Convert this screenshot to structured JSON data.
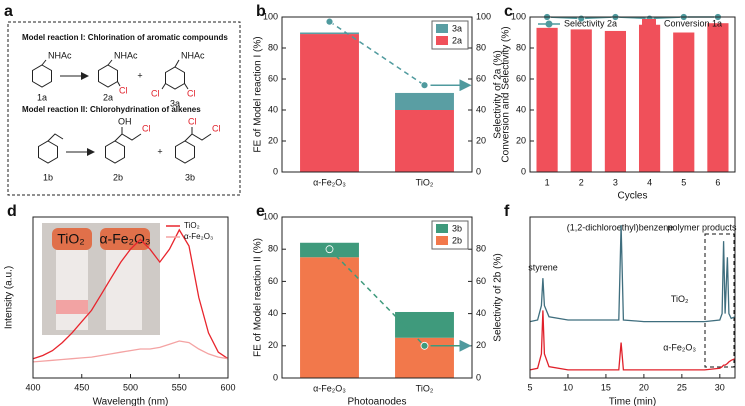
{
  "panel_a": {
    "label": "a",
    "reaction_1": "Model reaction I:  Chlorination of aromatic compounds",
    "reaction_2": "Model reaction II: Chlorohydrination of alkenes",
    "plus": "+",
    "compounds": [
      {
        "id": "1a",
        "groups": [
          "NHAc"
        ]
      },
      {
        "id": "2a",
        "groups": [
          "NHAc",
          "Cl"
        ]
      },
      {
        "id": "3a",
        "groups": [
          "NHAc",
          "Cl",
          "Cl"
        ]
      },
      {
        "id": "1b",
        "groups": []
      },
      {
        "id": "2b",
        "groups": [
          "OH",
          "Cl"
        ]
      },
      {
        "id": "3b",
        "groups": [
          "Cl",
          "Cl"
        ]
      }
    ]
  },
  "chart_data": [
    {
      "type": "bar",
      "label": "b",
      "stacked": true,
      "dashed": true,
      "legend": "upper right",
      "categories": [
        "α-Fe₂O₃",
        "TiO₂"
      ],
      "ylabel": "FE of Model reaction I (%)",
      "y2label": "Selectivity of 2a (%)",
      "ylim": [
        0,
        100
      ],
      "yticks": [
        0,
        20,
        40,
        60,
        80,
        100
      ],
      "y2lim": [
        0,
        100
      ],
      "y2ticks": [
        0,
        20,
        40,
        60,
        80,
        100
      ],
      "series": [
        {
          "name": "2a",
          "color": "#f0505a",
          "values": [
            89,
            40
          ]
        },
        {
          "name": "3a",
          "color": "#5a9ea3",
          "values": [
            1,
            11
          ]
        },
        {
          "type": "line",
          "axis": "y2",
          "color": "#4f9a9e",
          "values": [
            97,
            56
          ]
        }
      ]
    },
    {
      "type": "bar",
      "label": "c",
      "legend": "upper center",
      "categories": [
        "1",
        "2",
        "3",
        "4",
        "5",
        "6"
      ],
      "xlabel": "Cycles",
      "ylabel": "Conversion and Selectivity (%)",
      "ylim": [
        0,
        100
      ],
      "yticks": [
        0,
        20,
        40,
        60,
        80,
        100
      ],
      "series": [
        {
          "name": "Selectivity 2a",
          "type": "line",
          "color": "#4f9a9e",
          "values": [
            100,
            99,
            100,
            99,
            100,
            100
          ]
        },
        {
          "name": "Conversion 1a",
          "color": "#f0505a",
          "values": [
            93,
            92,
            91,
            95,
            90,
            96
          ]
        }
      ]
    },
    {
      "type": "line",
      "label": "d",
      "legend": "upper right",
      "xlabel": "Wavelength (nm)",
      "ylabel": "Intensity (a.u.)",
      "inset_labels": [
        "TiO₂",
        "α-Fe₂O₃"
      ],
      "xlim": [
        400,
        600
      ],
      "xticks": [
        400,
        450,
        500,
        550,
        600
      ],
      "ylim": [
        0,
        1
      ],
      "x": [
        400,
        410,
        420,
        430,
        440,
        450,
        460,
        470,
        480,
        490,
        500,
        510,
        520,
        530,
        540,
        550,
        560,
        570,
        580,
        590,
        600
      ],
      "series": [
        {
          "name": "TiO₂",
          "color": "#e8252d",
          "values": [
            0.12,
            0.14,
            0.17,
            0.22,
            0.28,
            0.35,
            0.42,
            0.52,
            0.62,
            0.72,
            0.8,
            0.86,
            0.8,
            0.72,
            0.8,
            0.92,
            0.82,
            0.5,
            0.28,
            0.16,
            0.12
          ]
        },
        {
          "name": "α-Fe₂O₃",
          "color": "#f4a3a3",
          "values": [
            0.1,
            0.105,
            0.11,
            0.115,
            0.12,
            0.125,
            0.13,
            0.14,
            0.15,
            0.16,
            0.17,
            0.18,
            0.18,
            0.19,
            0.21,
            0.23,
            0.22,
            0.18,
            0.15,
            0.13,
            0.12
          ]
        }
      ]
    },
    {
      "type": "bar",
      "label": "e",
      "stacked": true,
      "dashed": true,
      "legend": "upper right",
      "categories": [
        "α-Fe₂O₃",
        "TiO₂"
      ],
      "xlabel": "Photoanodes",
      "ylabel": "FE of Model reaction II (%)",
      "y2label": "Selectivity of 2b (%)",
      "ylim": [
        0,
        100
      ],
      "yticks": [
        0,
        20,
        40,
        60,
        80,
        100
      ],
      "y2lim": [
        0,
        100
      ],
      "y2ticks": [
        0,
        20,
        40,
        60,
        80
      ],
      "series": [
        {
          "name": "2b",
          "color": "#f2784b",
          "values": [
            75,
            25
          ]
        },
        {
          "name": "3b",
          "color": "#3f9a7c",
          "values": [
            9,
            16
          ]
        },
        {
          "type": "line",
          "axis": "y2",
          "color": "#3f9a7c",
          "values": [
            80,
            20
          ]
        }
      ]
    },
    {
      "type": "line",
      "label": "f",
      "legend": "inline",
      "xlabel": "Time (min)",
      "annotations": [
        "styrene",
        "(1,2-dichloroethyl)benzene",
        "polymer products"
      ],
      "xlim": [
        5,
        32
      ],
      "xticks": [
        5,
        10,
        15,
        20,
        25,
        30
      ],
      "ylim": [
        0,
        1
      ],
      "x": [
        5,
        6,
        6.5,
        6.7,
        6.9,
        7.5,
        10,
        16.7,
        17,
        17.3,
        20,
        25,
        28,
        30,
        30.3,
        30.5,
        30.7,
        31,
        31.2,
        31.5,
        32
      ],
      "series": [
        {
          "name": "TiO₂",
          "color": "#3f6e7e",
          "values": [
            0.35,
            0.36,
            0.45,
            0.62,
            0.45,
            0.38,
            0.36,
            0.36,
            0.95,
            0.36,
            0.35,
            0.35,
            0.35,
            0.36,
            0.4,
            0.85,
            0.4,
            0.75,
            0.4,
            0.37,
            0.38
          ]
        },
        {
          "name": "α-Fe₂O₃",
          "color": "#e0202a",
          "values": [
            0.05,
            0.06,
            0.15,
            0.42,
            0.15,
            0.07,
            0.05,
            0.05,
            0.22,
            0.05,
            0.05,
            0.05,
            0.05,
            0.06,
            0.07,
            0.08,
            0.08,
            0.09,
            0.1,
            0.11,
            0.12
          ]
        }
      ]
    }
  ]
}
